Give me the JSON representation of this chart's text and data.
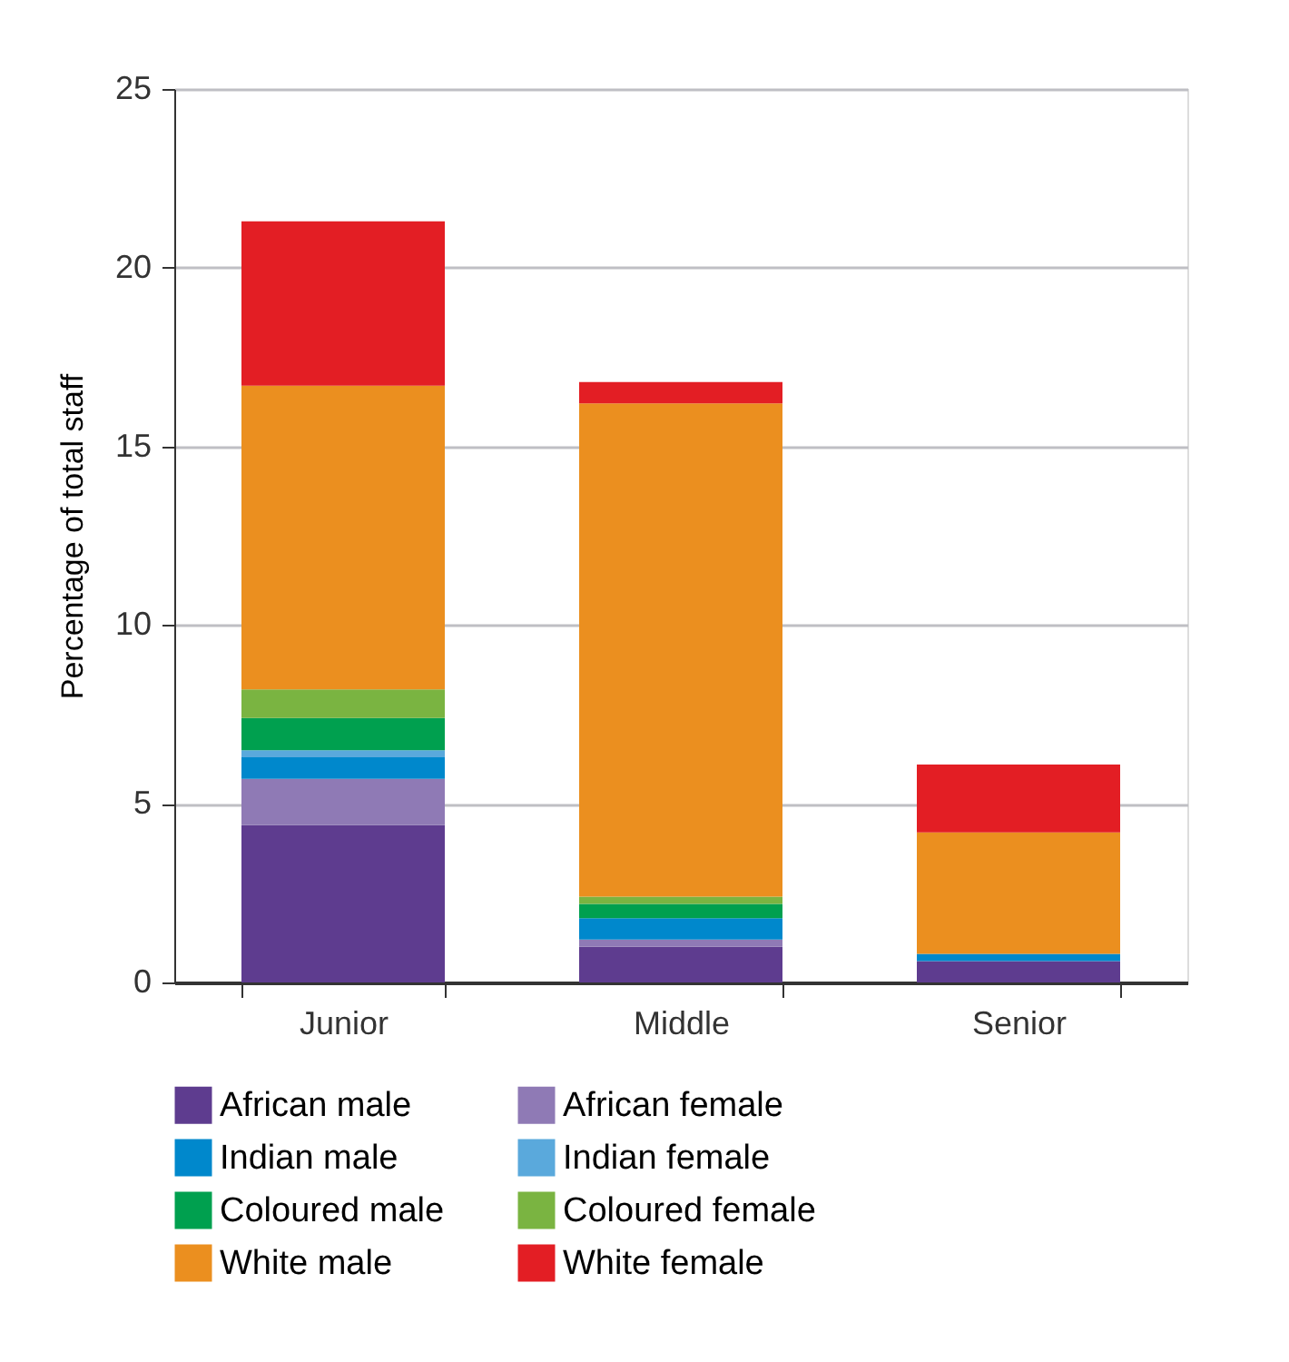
{
  "chart_data": {
    "type": "bar",
    "stacked": true,
    "ylabel": "Percentage of total staff",
    "categories": [
      "Junior",
      "Middle",
      "Senior"
    ],
    "series": [
      {
        "name": "African male",
        "color": "#5e3c8f",
        "values": [
          4.4,
          1.0,
          0.6
        ]
      },
      {
        "name": "African female",
        "color": "#8f7ab5",
        "values": [
          1.3,
          0.2,
          0
        ]
      },
      {
        "name": "Indian male",
        "color": "#0088cc",
        "values": [
          0.6,
          0.6,
          0.2
        ]
      },
      {
        "name": "Indian female",
        "color": "#5aa9dc",
        "values": [
          0.2,
          0,
          0
        ]
      },
      {
        "name": "Coloured male",
        "color": "#00a04f",
        "values": [
          0.9,
          0.4,
          0
        ]
      },
      {
        "name": "Coloured female",
        "color": "#7ab441",
        "values": [
          0.8,
          0.2,
          0
        ]
      },
      {
        "name": "White male",
        "color": "#eb8f1f",
        "values": [
          8.5,
          13.8,
          3.4
        ]
      },
      {
        "name": "White female",
        "color": "#e31e24",
        "values": [
          4.6,
          0.6,
          1.9
        ]
      }
    ],
    "ylim": [
      0,
      25
    ],
    "yticks": [
      0,
      5,
      10,
      15,
      20,
      25
    ],
    "grid": "y",
    "legend": "bottom"
  }
}
